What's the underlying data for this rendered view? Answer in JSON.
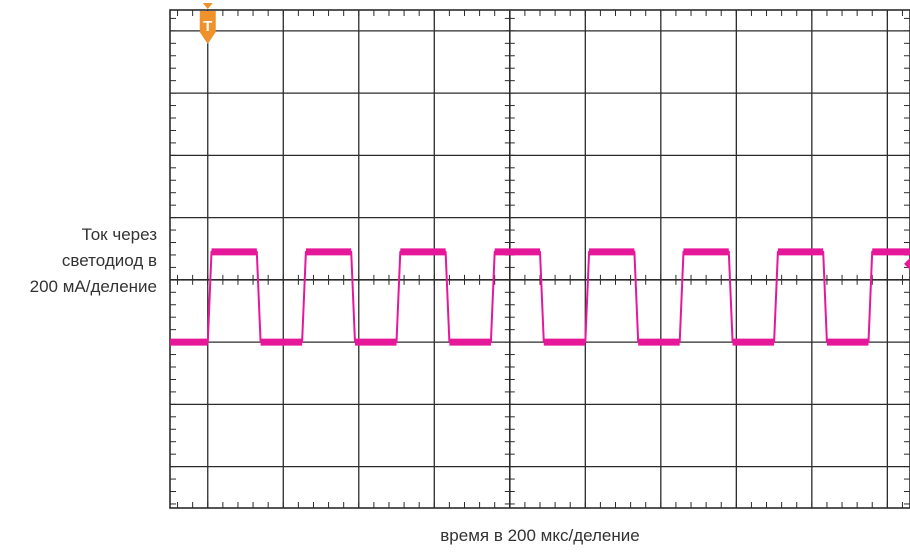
{
  "chart_data": {
    "type": "line",
    "title": "",
    "ylabel_lines": [
      "Ток через",
      "светодиод в",
      "200 мА/деление"
    ],
    "xlabel": "время в 200 мкс/деление",
    "x_unit": "мкс",
    "y_unit": "мА",
    "x_per_division": 200,
    "y_per_division": 200,
    "xlim": [
      -100,
      1860
    ],
    "ylim": [
      -533,
      1067
    ],
    "grid": true,
    "trigger_marker": "T",
    "trigger_x": 0,
    "series": [
      {
        "color": "#e6189a",
        "x": [
          -100,
          0,
          10,
          130,
          140,
          250,
          260,
          380,
          390,
          500,
          510,
          630,
          640,
          750,
          760,
          880,
          890,
          1000,
          1010,
          1130,
          1140,
          1250,
          1260,
          1380,
          1390,
          1500,
          1510,
          1630,
          1640,
          1750,
          1760,
          1860
        ],
        "y": [
          0,
          0,
          290,
          290,
          0,
          0,
          290,
          290,
          0,
          0,
          290,
          290,
          0,
          0,
          290,
          290,
          0,
          0,
          290,
          290,
          0,
          0,
          290,
          290,
          0,
          0,
          290,
          290,
          0,
          0,
          290,
          290
        ]
      }
    ],
    "colors": {
      "grid": "#2b2b2b",
      "trace": "#e6189a",
      "trigger": "#f0922b"
    }
  }
}
